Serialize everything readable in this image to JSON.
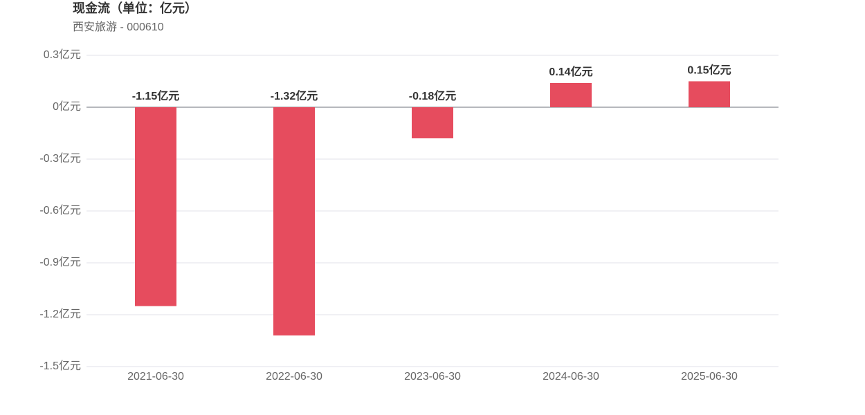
{
  "chart_data": {
    "type": "bar",
    "title": "现金流（单位：亿元）",
    "subtitle": "西安旅游 - 000610",
    "categories": [
      "2021-06-30",
      "2022-06-30",
      "2023-06-30",
      "2024-06-30",
      "2025-06-30"
    ],
    "values": [
      -1.15,
      -1.32,
      -0.18,
      0.14,
      0.15
    ],
    "value_labels": [
      "-1.15亿元",
      "-1.32亿元",
      "-0.18亿元",
      "0.14亿元",
      "0.15亿元"
    ],
    "color": "#e64c5e",
    "ylim": [
      -1.5,
      0.3
    ],
    "yticks": [
      {
        "value": 0.3,
        "label": "0.3亿元"
      },
      {
        "value": 0,
        "label": "0亿元"
      },
      {
        "value": -0.3,
        "label": "-0.3亿元"
      },
      {
        "value": -0.6,
        "label": "-0.6亿元"
      },
      {
        "value": -0.9,
        "label": "-0.9亿元"
      },
      {
        "value": -1.2,
        "label": "-1.2亿元"
      },
      {
        "value": -1.5,
        "label": "-1.5亿元"
      }
    ],
    "grid": true
  }
}
